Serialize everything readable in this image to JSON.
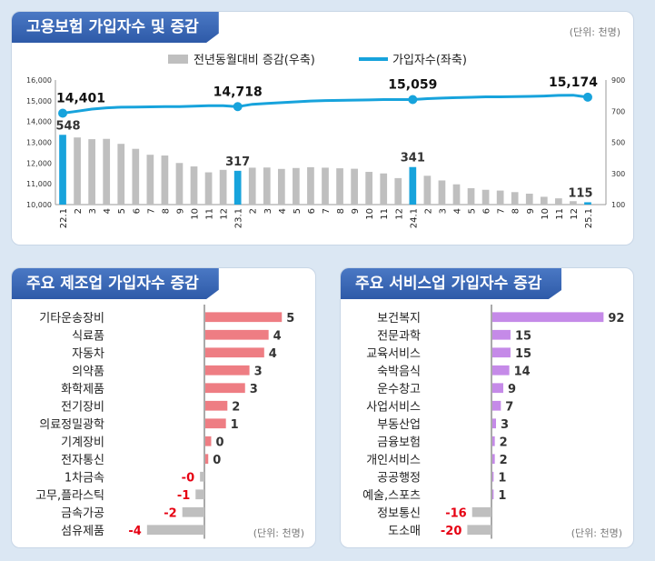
{
  "top": {
    "title": "고용보험 가입자수 및 증감",
    "unit": "(단위: 천명)"
  },
  "mfg": {
    "title": "주요 제조업 가입자수 증감",
    "unit": "(단위: 천명)"
  },
  "svc": {
    "title": "주요 서비스업 가입자수 증감",
    "unit": "(단위: 천명)"
  },
  "colors": {
    "gray_bar": "#bfbfbf",
    "blue": "#17a3dc",
    "red_bar": "#ee7d83",
    "purple_bar": "#c58ae8",
    "negative_text": "#e60012",
    "title_bg": "#2e5aa8"
  },
  "chart_data": [
    {
      "type": "bar+line",
      "x_tick_labels": [
        "22.1",
        "2",
        "3",
        "4",
        "5",
        "6",
        "7",
        "8",
        "9",
        "10",
        "11",
        "12",
        "23.1",
        "2",
        "3",
        "4",
        "5",
        "6",
        "7",
        "8",
        "9",
        "10",
        "11",
        "12",
        "24.1",
        "2",
        "3",
        "4",
        "5",
        "6",
        "7",
        "8",
        "9",
        "10",
        "11",
        "12",
        "25.1"
      ],
      "series": [
        {
          "name": "전년동월대비 증감(우축)",
          "type": "bar",
          "axis": "right",
          "values": [
            548,
            531,
            520,
            522,
            490,
            458,
            420,
            415,
            367,
            345,
            307,
            323,
            317,
            337,
            338,
            329,
            335,
            340,
            337,
            333,
            330,
            310,
            300,
            270,
            341,
            285,
            255,
            230,
            205,
            195,
            190,
            180,
            170,
            150,
            140,
            122,
            115
          ],
          "highlighted_labels": {
            "0": "548",
            "12": "317",
            "24": "341",
            "36": "115"
          }
        },
        {
          "name": "가입자수(좌축)",
          "type": "line",
          "axis": "left",
          "values": [
            14401,
            14500,
            14600,
            14660,
            14690,
            14700,
            14710,
            14715,
            14720,
            14740,
            14760,
            14760,
            14718,
            14830,
            14870,
            14910,
            14950,
            14990,
            15010,
            15020,
            15030,
            15040,
            15060,
            15060,
            15059,
            15100,
            15130,
            15150,
            15170,
            15190,
            15190,
            15200,
            15210,
            15230,
            15260,
            15270,
            15174
          ],
          "point_labels": {
            "0": "14,401",
            "12": "14,718",
            "24": "15,059",
            "36": "15,174"
          }
        }
      ],
      "left_axis": {
        "ticks": [
          "10,000",
          "11,000",
          "12,000",
          "13,000",
          "14,000",
          "15,000",
          "16,000"
        ],
        "ylim": [
          10000,
          16000
        ]
      },
      "right_axis": {
        "ticks": [
          "100",
          "300",
          "500",
          "700",
          "900"
        ],
        "ylim": [
          100,
          900
        ]
      }
    },
    {
      "type": "bar",
      "orientation": "horizontal",
      "categories": [
        "기타운송장비",
        "식료품",
        "자동차",
        "의약품",
        "화학제품",
        "전기장비",
        "의료정밀광학",
        "기계장비",
        "전자통신",
        "1차금속",
        "고무,플라스틱",
        "금속가공",
        "섬유제품"
      ],
      "values": [
        5.2,
        4.3,
        4.0,
        3.0,
        2.7,
        1.5,
        1.4,
        0.4,
        0.2,
        -0.3,
        -0.6,
        -1.5,
        -3.9
      ],
      "labels": [
        "5",
        "4",
        "4",
        "3",
        "3",
        "2",
        "1",
        "0",
        "0",
        "-0",
        "-1",
        "-2",
        "-4"
      ]
    },
    {
      "type": "bar",
      "orientation": "horizontal",
      "categories": [
        "보건복지",
        "전문과학",
        "교육서비스",
        "숙박음식",
        "운수창고",
        "사업서비스",
        "부동산업",
        "금융보험",
        "개인서비스",
        "공공행정",
        "예술,스포츠",
        "정보통신",
        "도소매"
      ],
      "values": [
        92,
        15,
        15,
        14,
        9,
        7,
        3,
        2,
        2,
        1,
        1,
        -16,
        -20
      ],
      "labels": [
        "92",
        "15",
        "15",
        "14",
        "9",
        "7",
        "3",
        "2",
        "2",
        "1",
        "1",
        "-16",
        "-20"
      ]
    }
  ]
}
